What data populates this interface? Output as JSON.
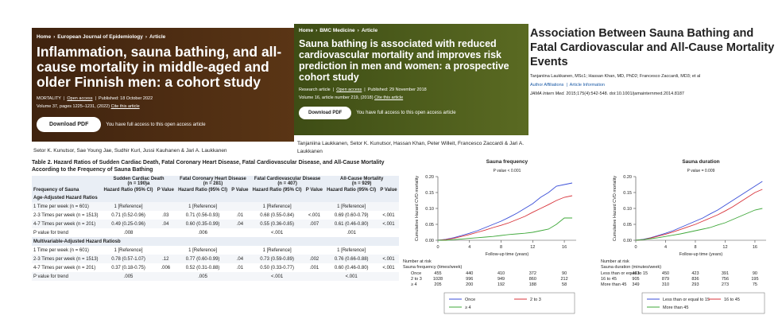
{
  "springer": {
    "breadcrumb": [
      "Home",
      "European Journal of Epidemiology",
      "Article"
    ],
    "title": "Inflammation, sauna bathing, and all-cause mortality in middle-aged and older Finnish men: a cohort study",
    "meta": [
      "MORTALITY",
      "Open access",
      "Published: 18 October 2022"
    ],
    "volume": "Volume 37, pages 1225–1231, (2022)",
    "cite": "Cite this article",
    "download": "Download PDF",
    "access": "You have full access to this open access article",
    "authors": "Setor K. Kunutsor, Sae Young Jae, Sudhir Kurl, Jussi Kauhanen & Jari A. Laukkanen"
  },
  "bmc": {
    "breadcrumb": [
      "Home",
      "BMC Medicine",
      "Article"
    ],
    "title": "Sauna bathing is associated with reduced cardiovascular mortality and improves risk prediction in men and women: a prospective cohort study",
    "meta": [
      "Research article",
      "Open access",
      "Published: 29 November 2018"
    ],
    "volume": "Volume 16, article number 219, (2018)",
    "cite": "Cite this article",
    "download": "Download PDF",
    "access": "You have full access to this open access article",
    "authors": "Tanjaniina Laukkanen, Setor K. Kunutsor, Hassan Khan, Peter Willeit, Francesco Zaccardi & Jari A. Laukkanen"
  },
  "jama": {
    "title": "Association Between Sauna Bathing and Fatal Cardiovascular and All-Cause Mortality Events",
    "authors": "Tanjaniina Laukkanen, MSc1; Hassan Khan, MD, PhD2; Francesco Zaccardi, MD3; et al",
    "links": [
      "Author Affiliations",
      "Article Information"
    ],
    "journal": "JAMA Intern Med.",
    "citation": "2015;175(4):542-548. doi:10.1001/jamainternmed.2014.8187"
  },
  "table": {
    "caption": "Table 2. Hazard Ratios of Sudden Cardiac Death, Fatal Coronary Heart Disease, Fatal Cardiovascular Disease, and All-Cause Mortality According to the Frequency of Sauna Bathing",
    "row_header": "Frequency of Sauna",
    "hr_header": "Hazard Ratio (95% CI)",
    "p_header": "P Value",
    "outcomes": [
      {
        "name": "Sudden Cardiac Death",
        "n": "(n = 190)a"
      },
      {
        "name": "Fatal Coronary Heart Disease",
        "n": "(n = 281)"
      },
      {
        "name": "Fatal Cardiovascular Disease",
        "n": "(n = 407)"
      },
      {
        "name": "All-Cause Mortality",
        "n": "(n = 929)"
      }
    ],
    "sections": [
      {
        "title": "Age-Adjusted Hazard Ratios",
        "rows": [
          {
            "label": "1 Time per week (n = 601)",
            "cells": [
              {
                "hr": "1 [Reference]"
              },
              {
                "hr": "1 [Reference]"
              },
              {
                "hr": "1 [Reference]"
              },
              {
                "hr": "1 [Reference]"
              }
            ]
          },
          {
            "label": "2-3 Times per week (n = 1513)",
            "cells": [
              {
                "hr": "0.71 (0.52-0.96)",
                "p": ".03"
              },
              {
                "hr": "0.71 (0.56-0.93)",
                "p": ".01"
              },
              {
                "hr": "0.68 (0.55-0.84)",
                "p": "<.001"
              },
              {
                "hr": "0.69 (0.60-0.79)",
                "p": "<.001"
              }
            ]
          },
          {
            "label": "4-7 Times per week (n = 201)",
            "cells": [
              {
                "hr": "0.49 (0.25-0.96)",
                "p": ".04"
              },
              {
                "hr": "0.60 (0.35-0.99)",
                "p": ".04"
              },
              {
                "hr": "0.55 (0.36-0.85)",
                "p": ".007"
              },
              {
                "hr": "0.61 (0.46-0.80)",
                "p": "<.001"
              }
            ]
          },
          {
            "label": "P value for trend",
            "cells": [
              {
                "hr": ".008"
              },
              {
                "hr": ".006"
              },
              {
                "hr": "<.001"
              },
              {
                "hr": ".001"
              }
            ]
          }
        ]
      },
      {
        "title": "Multivariable-Adjusted Hazard Ratiosb",
        "rows": [
          {
            "label": "1 Time per week (n = 601)",
            "cells": [
              {
                "hr": "1 [Reference]"
              },
              {
                "hr": "1 [Reference]"
              },
              {
                "hr": "1 [Reference]"
              },
              {
                "hr": "1 [Reference]"
              }
            ]
          },
          {
            "label": "2-3 Times per week (n = 1513)",
            "cells": [
              {
                "hr": "0.78 (0.57-1.07)",
                "p": ".12"
              },
              {
                "hr": "0.77 (0.60-0.99)",
                "p": ".04"
              },
              {
                "hr": "0.73 (0.59-0.89)",
                "p": ".002"
              },
              {
                "hr": "0.76 (0.66-0.88)",
                "p": "<.001"
              }
            ]
          },
          {
            "label": "4-7 Times per week (n = 201)",
            "cells": [
              {
                "hr": "0.37 (0.18-0.75)",
                "p": ".006"
              },
              {
                "hr": "0.52 (0.31-0.88)",
                "p": ".01"
              },
              {
                "hr": "0.50 (0.33-0.77)",
                "p": ".001"
              },
              {
                "hr": "0.60 (0.46-0.80)",
                "p": "<.001"
              }
            ]
          },
          {
            "label": "P value for trend",
            "cells": [
              {
                "hr": ".005"
              },
              {
                "hr": ".005"
              },
              {
                "hr": "<.001"
              },
              {
                "hr": "<.001"
              }
            ]
          }
        ]
      }
    ]
  },
  "chart_data": [
    {
      "type": "line",
      "title": "Sauna frequency",
      "subtitle": "P value < 0.001",
      "y_label": "Cumulative Hazard CVD mortality",
      "x_label": "Follow-up time (years)",
      "x": [
        0,
        1,
        2,
        3,
        4,
        5,
        6,
        7,
        8,
        9,
        10,
        11,
        12,
        13,
        14,
        15,
        16,
        17
      ],
      "series": [
        {
          "name": "Once",
          "color": "#3b4fd8",
          "values": [
            0,
            0.003,
            0.008,
            0.015,
            0.022,
            0.03,
            0.04,
            0.05,
            0.06,
            0.072,
            0.085,
            0.1,
            0.115,
            0.135,
            0.15,
            0.17,
            0.175,
            0.18
          ]
        },
        {
          "name": "2 to 3",
          "color": "#d8343b",
          "values": [
            0,
            0.002,
            0.006,
            0.012,
            0.018,
            0.025,
            0.032,
            0.04,
            0.047,
            0.055,
            0.065,
            0.075,
            0.088,
            0.1,
            0.112,
            0.125,
            0.135,
            0.14
          ]
        },
        {
          "name": "≥ 4",
          "color": "#3fa83a",
          "values": [
            0,
            0,
            0.002,
            0.004,
            0.006,
            0.008,
            0.01,
            0.012,
            0.015,
            0.018,
            0.02,
            0.022,
            0.025,
            0.03,
            0.035,
            0.05,
            0.07,
            0.07
          ]
        }
      ],
      "xlim": [
        0,
        17.5
      ],
      "xticks": [
        0,
        4,
        8,
        12,
        16
      ],
      "ylim": [
        0,
        0.2
      ],
      "yticks": [
        {
          "value": 0,
          "label": "0.00"
        },
        {
          "value": 0.05,
          "label": "0.05"
        },
        {
          "value": 0.1,
          "label": "0.10"
        },
        {
          "value": 0.15,
          "label": "0.15"
        },
        {
          "value": 0.2,
          "label": "0.20"
        }
      ],
      "risk_table": {
        "title": "Number at risk",
        "subtitle": "Sauna frequency (times/week)",
        "rows": [
          {
            "name": "Once",
            "counts": [
              455,
              440,
              410,
              372,
              90
            ]
          },
          {
            "name": "2 to 3",
            "counts": [
              1028,
              996,
              949,
              860,
              212
            ]
          },
          {
            "name": "≥ 4",
            "counts": [
              205,
              200,
              192,
              188,
              58
            ]
          }
        ]
      }
    },
    {
      "type": "line",
      "title": "Sauna duration",
      "subtitle": "P value = 0.009",
      "y_label": "Cumulative Hazard CVD mortality",
      "x_label": "Follow-up time (years)",
      "x": [
        0,
        1,
        2,
        3,
        4,
        5,
        6,
        7,
        8,
        9,
        10,
        11,
        12,
        13,
        14,
        15,
        16,
        17
      ],
      "series": [
        {
          "name": "Less than or equal to 15",
          "color": "#3b4fd8",
          "values": [
            0,
            0.003,
            0.008,
            0.015,
            0.022,
            0.03,
            0.04,
            0.05,
            0.06,
            0.07,
            0.083,
            0.095,
            0.11,
            0.125,
            0.14,
            0.155,
            0.17,
            0.185
          ]
        },
        {
          "name": "16 to 45",
          "color": "#d8343b",
          "values": [
            0,
            0.002,
            0.007,
            0.013,
            0.019,
            0.026,
            0.034,
            0.042,
            0.05,
            0.06,
            0.07,
            0.08,
            0.092,
            0.105,
            0.12,
            0.135,
            0.15,
            0.16
          ]
        },
        {
          "name": "More than 45",
          "color": "#3fa83a",
          "values": [
            0,
            0.002,
            0.005,
            0.008,
            0.012,
            0.016,
            0.02,
            0.025,
            0.03,
            0.035,
            0.04,
            0.048,
            0.055,
            0.065,
            0.075,
            0.085,
            0.095,
            0.1
          ]
        }
      ],
      "xlim": [
        0,
        17.5
      ],
      "xticks": [
        0,
        4,
        8,
        12,
        16
      ],
      "ylim": [
        0,
        0.2
      ],
      "yticks": [
        {
          "value": 0,
          "label": "0.00"
        },
        {
          "value": 0.05,
          "label": "0.05"
        },
        {
          "value": 0.1,
          "label": "0.10"
        },
        {
          "value": 0.15,
          "label": "0.15"
        },
        {
          "value": 0.2,
          "label": "0.20"
        }
      ],
      "risk_table": {
        "title": "Number at risk",
        "subtitle": "Sauna duration (minutes/week)",
        "rows": [
          {
            "name": "Less than or equal to 15",
            "counts": [
              463,
              450,
              423,
              391,
              90
            ]
          },
          {
            "name": "16 to 45",
            "counts": [
              905,
              879,
              836,
              756,
              195
            ]
          },
          {
            "name": "More than 45",
            "counts": [
              349,
              310,
              293,
              273,
              75
            ]
          }
        ]
      }
    }
  ]
}
